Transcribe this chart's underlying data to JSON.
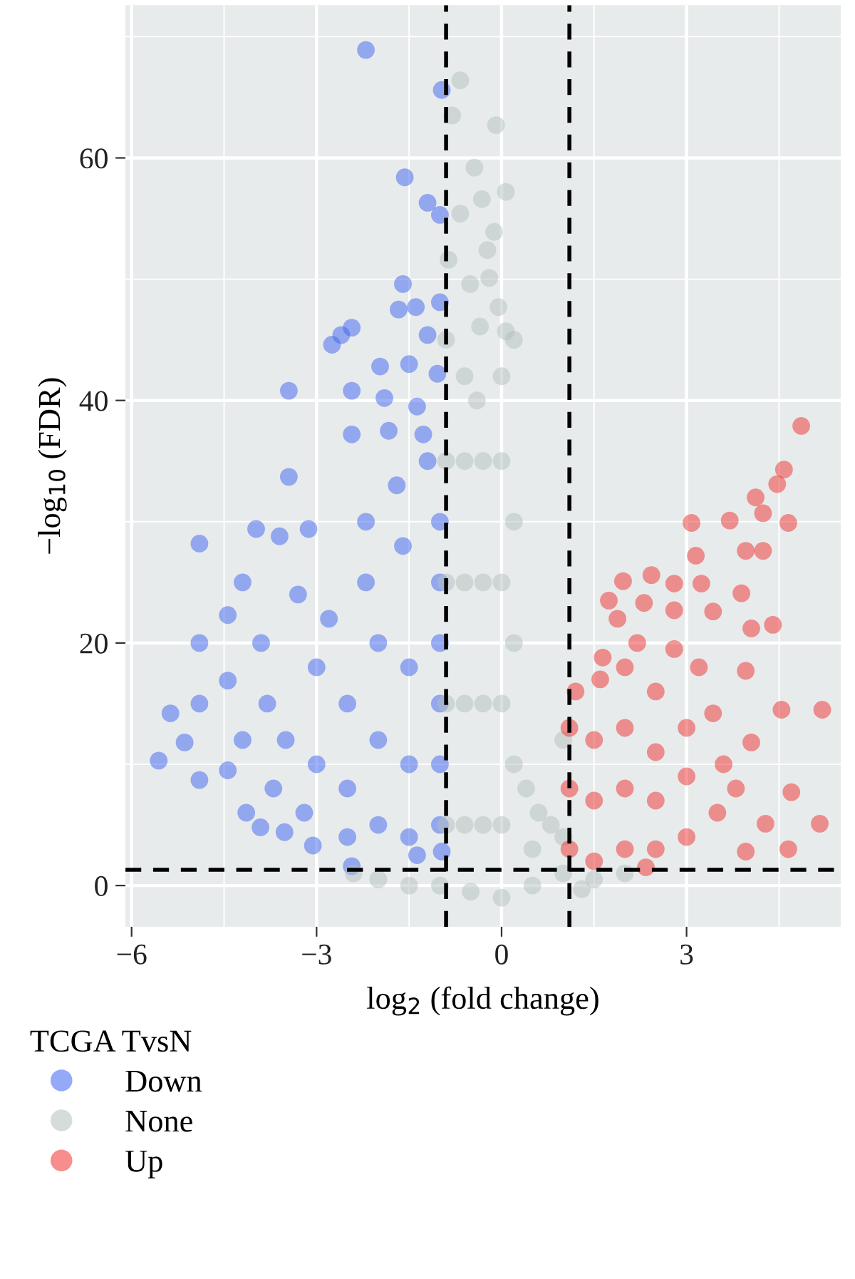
{
  "chart_data": {
    "type": "scatter",
    "xlabel": "log$_{2}$ (fold change)",
    "ylabel": "−log$_{10}$ (FDR)",
    "legend_title": "TCGA TvsN",
    "legend": "bottom left",
    "grid": true,
    "marker": "circle",
    "xlim": [
      -6.1,
      5.5
    ],
    "ylim": [
      -3.4,
      72.6
    ],
    "xticks": [
      {
        "value": -6,
        "label": "−6"
      },
      {
        "value": -3,
        "label": "−3"
      },
      0,
      3
    ],
    "yticks": [
      0,
      20,
      40,
      60
    ],
    "ref_lines": [
      {
        "axis": "x",
        "value": -0.9,
        "color": "#000000",
        "line_style": "dashed"
      },
      {
        "axis": "x",
        "value": 1.1,
        "color": "#000000",
        "line_style": "dashed"
      },
      {
        "axis": "y",
        "value": 1.3,
        "color": "#000000",
        "line_style": "dashed"
      }
    ],
    "series": [
      {
        "name": "Down",
        "color": "#3d63f2",
        "x": [
          -2.2,
          -0.97,
          -1.57,
          -1.2,
          -1.0,
          -1.6,
          -1.67,
          -1.39,
          -1.0,
          -2.43,
          -2.75,
          -2.6,
          -3.45,
          -2.43,
          -1.97,
          -1.5,
          -1.2,
          -1.04,
          -1.37,
          -1.9,
          -2.43,
          -1.27,
          -1.83,
          -3.45,
          -4.9,
          -3.98,
          -3.6,
          -3.13,
          -4.2,
          -4.44,
          -4.9,
          -4.44,
          -5.37,
          -4.9,
          -5.14,
          -5.56,
          -4.9,
          -4.44,
          -4.14,
          -3.91,
          -3.52,
          -3.06,
          -2.43,
          -1.37,
          -0.97,
          -3.0,
          -2.5,
          -2.0,
          -1.5,
          -1.0,
          -1.0,
          -1.0,
          -1.0,
          -1.0,
          -1.0,
          -1.5,
          -2.0,
          -2.5,
          -3.0,
          -3.5,
          -3.8,
          -2.8,
          -2.2,
          -1.6,
          -2.0,
          -1.5,
          -2.5,
          -3.2,
          -1.2,
          -1.7,
          -2.2,
          -3.3,
          -3.9,
          -4.2,
          -3.7
        ],
        "values": [
          68.9,
          65.6,
          58.4,
          56.3,
          55.3,
          49.6,
          47.5,
          47.7,
          48.1,
          46.0,
          44.6,
          45.4,
          40.8,
          40.8,
          42.8,
          43.0,
          45.4,
          42.2,
          39.5,
          40.2,
          37.2,
          37.2,
          37.5,
          33.7,
          28.2,
          29.4,
          28.8,
          29.4,
          25.0,
          22.3,
          20.0,
          16.9,
          14.2,
          15.0,
          11.8,
          10.3,
          8.7,
          9.5,
          6.0,
          4.8,
          4.4,
          3.3,
          1.6,
          2.5,
          2.8,
          10,
          8,
          5,
          4,
          5,
          10,
          15,
          20,
          25,
          30,
          10,
          12,
          15,
          18,
          12,
          15,
          22,
          25,
          28,
          20,
          18,
          4,
          6,
          35,
          33,
          30,
          24,
          20,
          12,
          8
        ]
      },
      {
        "name": "None",
        "color": "#b4bfc0",
        "x": [
          -0.67,
          -0.09,
          -0.44,
          0.07,
          -0.32,
          -0.67,
          -0.12,
          -0.23,
          -0.86,
          -0.51,
          -0.2,
          -0.05,
          -0.35,
          0.07,
          -0.8,
          -0.9,
          -0.9,
          -0.9,
          -0.9,
          -0.9,
          -0.6,
          -0.6,
          -0.6,
          -0.6,
          -0.6,
          -0.3,
          -0.3,
          -0.3,
          -0.3,
          0.0,
          0.0,
          0.0,
          0.0,
          0.0,
          0.2,
          0.2,
          0.2,
          0.4,
          0.6,
          0.8,
          1.0,
          1.0,
          0.5,
          1.0,
          0.5,
          0.0,
          -0.5,
          -1.0,
          -1.5,
          -2.0,
          -2.4,
          1.5,
          2.0,
          1.3,
          0.2,
          -0.4
        ],
        "values": [
          66.4,
          62.7,
          59.2,
          57.2,
          56.6,
          55.4,
          53.9,
          52.4,
          51.6,
          49.6,
          50.1,
          47.7,
          46.1,
          45.7,
          63.5,
          5,
          15,
          25,
          35,
          45,
          5,
          15,
          25,
          35,
          42,
          5,
          15,
          25,
          35,
          5,
          15,
          25,
          35,
          42,
          10,
          20,
          30,
          8,
          6,
          5,
          4,
          12,
          3,
          1,
          0,
          -1,
          -0.5,
          0,
          0,
          0.5,
          1,
          0.5,
          1,
          -0.3,
          45,
          40
        ]
      },
      {
        "name": "Up",
        "color": "#f03030",
        "x": [
          4.86,
          4.58,
          4.47,
          4.12,
          4.24,
          4.65,
          3.08,
          3.7,
          3.96,
          4.24,
          3.15,
          1.97,
          2.43,
          2.8,
          3.24,
          3.89,
          1.74,
          1.88,
          2.31,
          2.8,
          3.43,
          4.4,
          4.05,
          1.64,
          3.96,
          4.54,
          5.2,
          3.43,
          4.05,
          4.7,
          5.16,
          4.65,
          4.28,
          3.96,
          2.34,
          1.1,
          1.1,
          1.1,
          1.2,
          1.5,
          1.5,
          1.5,
          1.6,
          2.0,
          2.0,
          2.0,
          2.0,
          2.5,
          2.5,
          2.5,
          2.5,
          3.0,
          3.0,
          3.0,
          3.2,
          3.5,
          3.6,
          2.8,
          2.2,
          3.8
        ],
        "values": [
          37.9,
          34.3,
          33.1,
          32.0,
          30.7,
          29.9,
          29.9,
          30.1,
          27.6,
          27.6,
          27.2,
          25.1,
          25.6,
          24.9,
          24.9,
          24.1,
          23.5,
          22.0,
          23.3,
          22.7,
          22.6,
          21.5,
          21.2,
          18.8,
          17.7,
          14.5,
          14.5,
          14.2,
          11.8,
          7.7,
          5.1,
          3.0,
          5.1,
          2.8,
          1.5,
          3,
          8,
          13,
          16,
          2,
          7,
          12,
          17,
          3,
          8,
          13,
          18,
          3,
          7,
          11,
          16,
          4,
          9,
          13,
          18,
          6,
          10,
          19.5,
          20,
          8
        ]
      }
    ]
  }
}
